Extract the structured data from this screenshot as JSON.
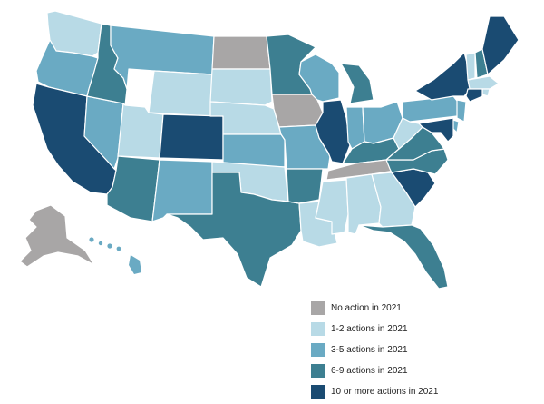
{
  "colors": {
    "none": "#a8a6a6",
    "c1": "#b8dae6",
    "c2": "#6aaac3",
    "c3": "#3d7f91",
    "c4": "#1a4b72"
  },
  "legend": [
    {
      "key": "none",
      "label": "No action in 2021"
    },
    {
      "key": "c1",
      "label": "1-2 actions in 2021"
    },
    {
      "key": "c2",
      "label": "3-5 actions in 2021"
    },
    {
      "key": "c3",
      "label": "6-9 actions in 2021"
    },
    {
      "key": "c4",
      "label": "10 or more actions in 2021"
    }
  ],
  "states": {
    "WA": "c1",
    "OR": "c2",
    "CA": "c4",
    "NV": "c2",
    "ID": "c3",
    "MT": "c2",
    "WY": "c1",
    "UT": "c1",
    "AZ": "c3",
    "CO": "c4",
    "NM": "c2",
    "ND": "none",
    "SD": "c1",
    "NE": "c1",
    "KS": "c2",
    "OK": "c1",
    "TX": "c3",
    "MN": "c3",
    "IA": "none",
    "MO": "c2",
    "AR": "c3",
    "LA": "c1",
    "WI": "c2",
    "IL": "c4",
    "MI": "c3",
    "IN": "c2",
    "OH": "c2",
    "KY": "c3",
    "TN": "none",
    "MS": "c1",
    "AL": "c1",
    "GA": "c1",
    "FL": "c3",
    "SC": "c4",
    "NC": "c3",
    "VA": "c3",
    "WV": "c1",
    "PA": "c2",
    "NY": "c4",
    "VT": "c1",
    "NH": "c3",
    "ME": "c4",
    "MA": "c1",
    "RI": "c1",
    "CT": "c4",
    "NJ": "c2",
    "DE": "c2",
    "MD": "c4",
    "AK": "none",
    "HI": "c2"
  }
}
